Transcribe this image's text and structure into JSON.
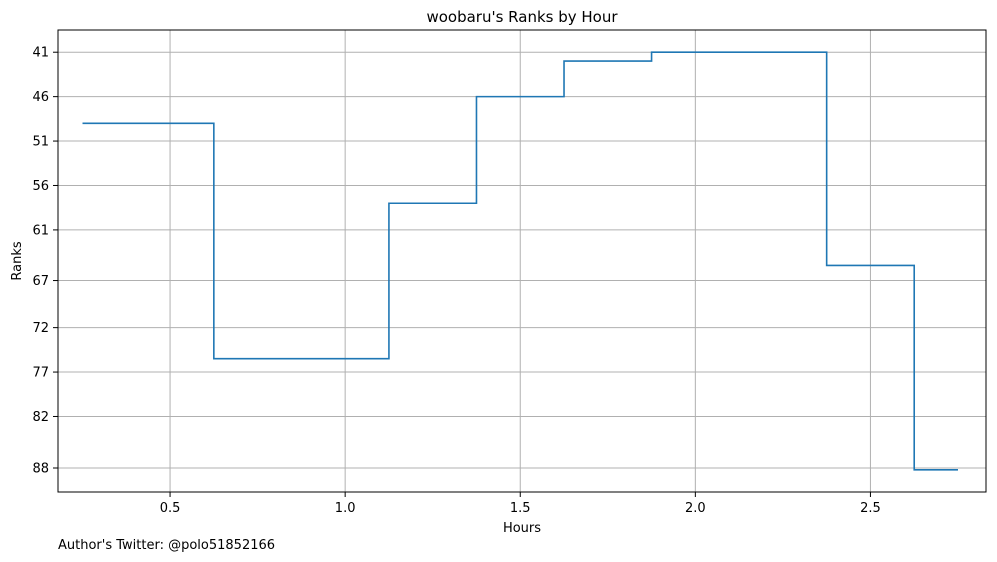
{
  "chart_data": {
    "type": "line",
    "drawstyle": "steps-mid",
    "title": "woobaru's Ranks by Hour",
    "xlabel": "Hours",
    "ylabel": "Ranks",
    "y_inverted": true,
    "grid": true,
    "xlim": [
      0.18,
      2.83
    ],
    "ylim": [
      90.5,
      38.5
    ],
    "x_ticks": [
      0.5,
      1.0,
      1.5,
      2.0,
      2.5
    ],
    "x_tick_labels": [
      "0.5",
      "1.0",
      "1.5",
      "2.0",
      "2.5"
    ],
    "y_ticks": [
      41,
      46,
      51,
      56,
      61,
      66.7,
      72,
      77,
      82,
      87.8
    ],
    "y_tick_labels": [
      "41",
      "46",
      "51",
      "56",
      "61",
      "67",
      "72",
      "77",
      "82",
      "88"
    ],
    "series": [
      {
        "name": "Ranks",
        "color": "#1f77b4",
        "x": [
          0.25,
          0.5,
          0.75,
          1.0,
          1.25,
          1.5,
          1.75,
          2.0,
          2.25,
          2.5,
          2.75
        ],
        "values": [
          49,
          49,
          75.5,
          75.5,
          58,
          46,
          42,
          41,
          41,
          65,
          88
        ]
      }
    ]
  },
  "footer": {
    "author_text": "Author's Twitter: @polo51852166"
  }
}
